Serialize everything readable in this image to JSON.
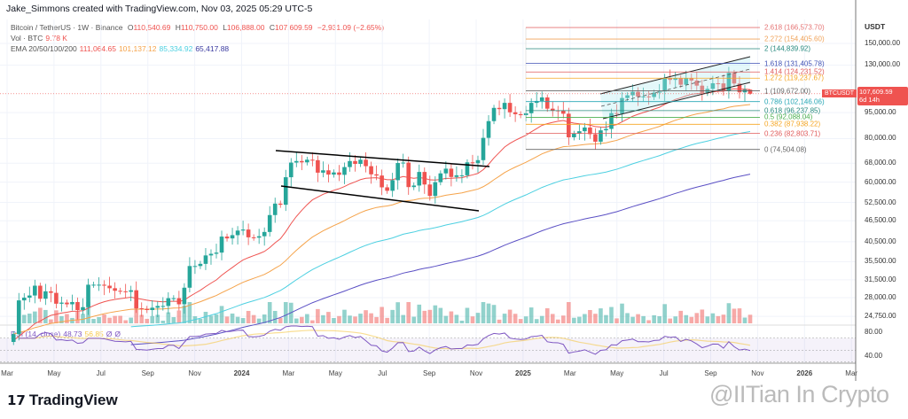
{
  "header": {
    "author": "Jake_Simmons created with TradingView.com, Nov 03, 2025 05:29 UTC-5",
    "symbol": "Bitcoin / TetherUS · 1W · Binance",
    "o_label": "O",
    "o": "110,540.69",
    "h_label": "H",
    "h": "110,750.00",
    "l_label": "L",
    "l": "106,888.00",
    "c_label": "C",
    "c": "107,609.59",
    "change": "−2,931.09 (−2.65%)",
    "vol_label": "Vol · BTC",
    "vol": "9.78 K",
    "ema_label": "EMA 20/50/100/200",
    "ema20": "111,064.65",
    "ema50": "101,137.12",
    "ema100": "85,334.92",
    "ema200": "65,417.88",
    "rsi_label": "RSI (14, close)",
    "rsi": "48.73",
    "rsi_ma": "56.85",
    "rsi_x1": "Ø",
    "rsi_x2": "Ø"
  },
  "price_axis": {
    "currency": "USDT",
    "ticks": [
      "150,000.00",
      "130,000.00",
      "95,000.00",
      "80,000.00",
      "68,000.00",
      "60,000.00",
      "52,500.00",
      "46,500.00",
      "40,500.00",
      "35,500.00",
      "31,500.00",
      "28,000.00",
      "24,750.00"
    ],
    "rsi_ticks": [
      "80.00",
      "40.00"
    ],
    "tag_symbol": "BTCUSDT",
    "tag_price": "107,609.59",
    "tag_countdown": "6d 14h"
  },
  "footer": {
    "brand": "TradingView",
    "watermark": "@IITian In Crypto"
  },
  "colors": {
    "up": "#26a69a",
    "down": "#ef5350",
    "ema20": "#ef5350",
    "ema50": "#f5a34a",
    "ema100": "#4dd0e1",
    "ema200": "#5a4fc4",
    "rsi": "#7e57c2"
  },
  "chart_data": {
    "type": "candlestick",
    "interval": "1W",
    "ylim": [
      23000,
      175000
    ],
    "yscale": "log",
    "x_ticks": [
      "Mar",
      "May",
      "Jul",
      "Sep",
      "Nov",
      "2024",
      "Mar",
      "May",
      "Jul",
      "Sep",
      "Nov",
      "2025",
      "Mar",
      "May",
      "Jul",
      "Sep",
      "Nov",
      "2026",
      "Mar"
    ],
    "closes": [
      22.0,
      27.5,
      28.0,
      28.4,
      30.3,
      27.8,
      29.2,
      28.9,
      26.9,
      27.1,
      26.8,
      27.2,
      25.8,
      26.3,
      30.5,
      30.5,
      30.5,
      30.3,
      29.8,
      29.3,
      29.2,
      29.1,
      29.4,
      26.1,
      26.0,
      25.8,
      26.2,
      26.5,
      26.5,
      27.9,
      27.9,
      26.8,
      29.9,
      34.5,
      34.5,
      35.0,
      37.0,
      37.4,
      37.7,
      41.9,
      41.4,
      42.3,
      43.6,
      43.9,
      41.7,
      41.6,
      42.0,
      43.2,
      48.3,
      52.1,
      51.7,
      62.0,
      68.3,
      69.0,
      68.4,
      69.6,
      69.4,
      63.9,
      64.9,
      63.1,
      64.0,
      63.0,
      66.3,
      69.0,
      67.7,
      69.6,
      66.7,
      63.2,
      62.7,
      58.0,
      56.7,
      60.8,
      68.1,
      68.3,
      58.1,
      58.7,
      64.2,
      59.1,
      54.8,
      60.0,
      63.6,
      65.6,
      62.1,
      62.8,
      62.8,
      68.4,
      68.0,
      69.4,
      80.4,
      89.8,
      98.0,
      97.2,
      101.3,
      95.2,
      94.0,
      93.4,
      94.6,
      101.3,
      102.6,
      105.0,
      97.5,
      96.4,
      96.2,
      94.3,
      80.7,
      82.6,
      84.0,
      86.1,
      82.4,
      78.4,
      84.5,
      85.3,
      94.7,
      94.3,
      104.6,
      106.5,
      109.0,
      105.6,
      105.7,
      105.3,
      108.4,
      109.2,
      119.1,
      117.9,
      119.4,
      114.2,
      119.3,
      117.4,
      113.5,
      108.2,
      111.1,
      115.3,
      115.2,
      109.6,
      123.5,
      115.1,
      108.6,
      110.54,
      107.61
    ],
    "close_unit": "thousand USDT",
    "last_candle": {
      "open": 110540.69,
      "high": 110750.0,
      "low": 106888.0,
      "close": 107609.59
    },
    "ema_periods": [
      20,
      50,
      100,
      200
    ],
    "fib_levels": [
      {
        "label": "2.618 (166,573.70)",
        "price": 166573.7,
        "color": "#e57373"
      },
      {
        "label": "2.272 (154,405.60)",
        "price": 154405.6,
        "color": "#f0a35a"
      },
      {
        "label": "2 (144,839.92)",
        "price": 144839.92,
        "color": "#26897e"
      },
      {
        "label": "1.618 (131,405.78)",
        "price": 131405.78,
        "color": "#3f51b5"
      },
      {
        "label": "1.414 (124,231.52)",
        "price": 124231.52,
        "color": "#e05a5a"
      },
      {
        "label": "1.272 (119,237.67)",
        "price": 119237.67,
        "color": "#f5a623"
      },
      {
        "label": "1 (109,672.00)",
        "price": 109672.0,
        "color": "#666666"
      },
      {
        "label": "0.786 (102,146.06)",
        "price": 102146.06,
        "color": "#26a6b5"
      },
      {
        "label": "0.618 (96,237.85)",
        "price": 96237.85,
        "color": "#26897e"
      },
      {
        "label": "0.5 (92,088.04)",
        "price": 92088.04,
        "color": "#4caf50"
      },
      {
        "label": "0.382 (87,938.22)",
        "price": 87938.22,
        "color": "#f5a623"
      },
      {
        "label": "0.236 (82,803.71)",
        "price": 82803.71,
        "color": "#e05a5a"
      },
      {
        "label": "0 (74,504.08)",
        "price": 74504.08,
        "color": "#666666"
      }
    ]
  }
}
